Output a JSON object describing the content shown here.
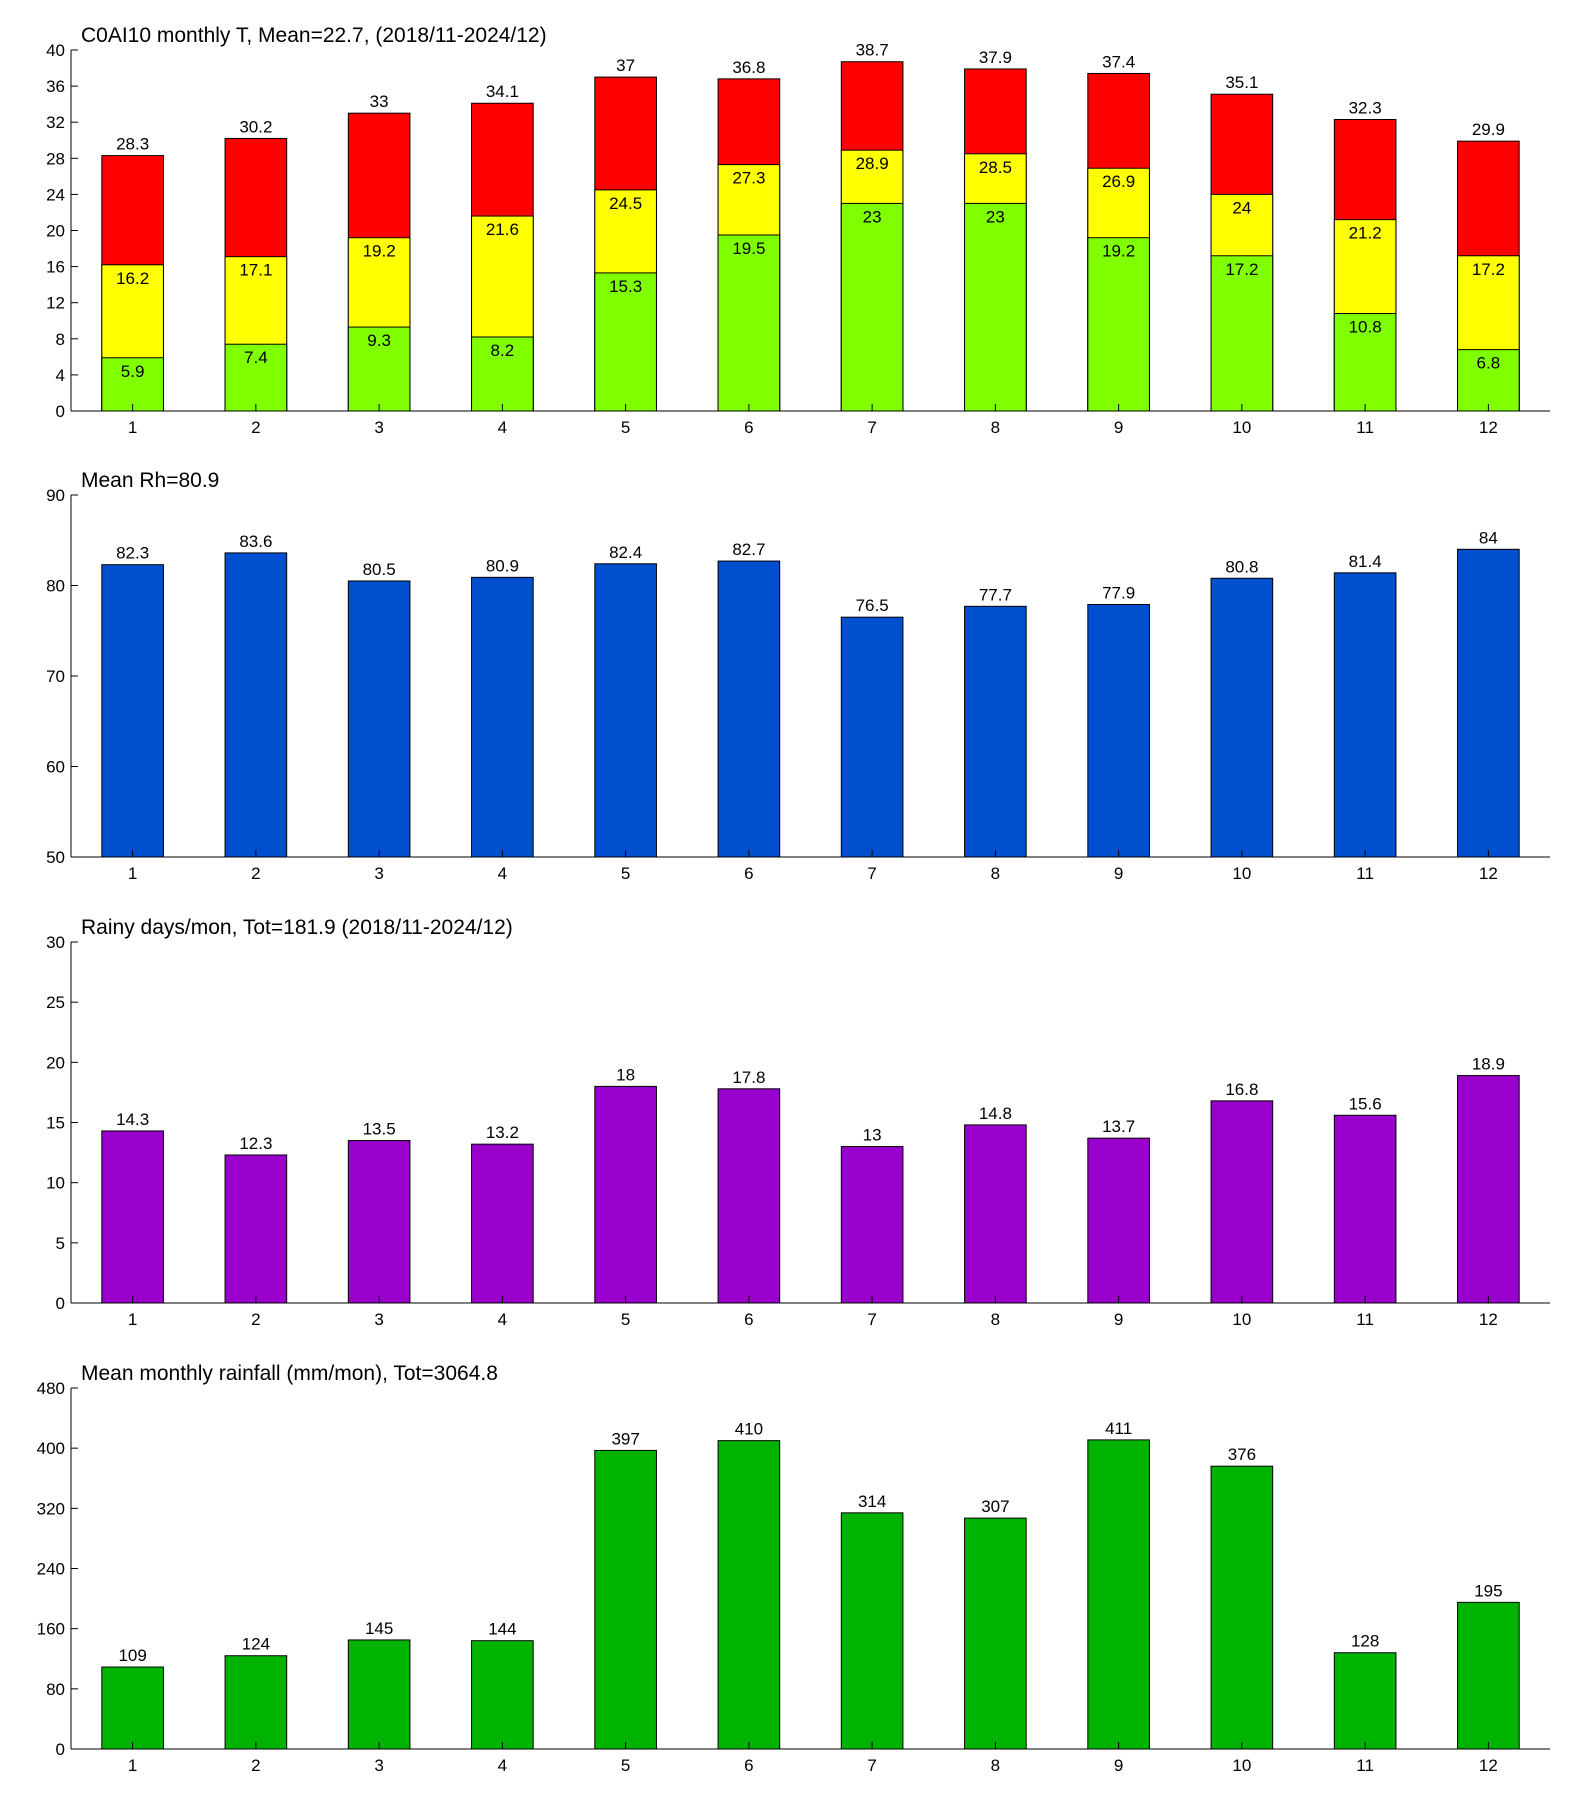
{
  "chart_data": [
    {
      "type": "bar",
      "title": "C0AI10 monthly T, Mean=22.7, (2018/11-2024/12)",
      "categories": [
        "1",
        "2",
        "3",
        "4",
        "5",
        "6",
        "7",
        "8",
        "9",
        "10",
        "11",
        "12"
      ],
      "series": [
        {
          "color": "#80ff00",
          "values": [
            5.9,
            7.4,
            9.3,
            8.2,
            15.3,
            19.5,
            23,
            23,
            19.2,
            17.2,
            10.8,
            6.8
          ]
        },
        {
          "color": "#ffff00",
          "values": [
            16.2,
            17.1,
            19.2,
            21.6,
            24.5,
            27.3,
            28.9,
            28.5,
            26.9,
            24,
            21.2,
            17.2
          ]
        },
        {
          "color": "#ff0000",
          "values": [
            28.3,
            30.2,
            33,
            34.1,
            37,
            36.8,
            38.7,
            37.9,
            37.4,
            35.1,
            32.3,
            29.9
          ]
        }
      ],
      "ylim": [
        0,
        40
      ],
      "yticks": [
        0,
        4,
        8,
        12,
        16,
        20,
        24,
        28,
        32,
        36,
        40
      ]
    },
    {
      "type": "bar",
      "title": "Mean Rh=80.9",
      "categories": [
        "1",
        "2",
        "3",
        "4",
        "5",
        "6",
        "7",
        "8",
        "9",
        "10",
        "11",
        "12"
      ],
      "values": [
        82.3,
        83.6,
        80.5,
        80.9,
        82.4,
        82.7,
        76.5,
        77.7,
        77.9,
        80.8,
        81.4,
        84
      ],
      "color": "#004fcf",
      "ylim": [
        50,
        90
      ],
      "yticks": [
        50,
        60,
        70,
        80,
        90
      ]
    },
    {
      "type": "bar",
      "title": "Rainy days/mon, Tot=181.9 (2018/11-2024/12)",
      "categories": [
        "1",
        "2",
        "3",
        "4",
        "5",
        "6",
        "7",
        "8",
        "9",
        "10",
        "11",
        "12"
      ],
      "values": [
        14.3,
        12.3,
        13.5,
        13.2,
        18,
        17.8,
        13,
        14.8,
        13.7,
        16.8,
        15.6,
        18.9
      ],
      "color": "#9900cc",
      "ylim": [
        0,
        30
      ],
      "yticks": [
        0,
        5,
        10,
        15,
        20,
        25,
        30
      ]
    },
    {
      "type": "bar",
      "title": "Mean monthly rainfall (mm/mon), Tot=3064.8",
      "categories": [
        "1",
        "2",
        "3",
        "4",
        "5",
        "6",
        "7",
        "8",
        "9",
        "10",
        "11",
        "12"
      ],
      "values": [
        109,
        124,
        145,
        144,
        397,
        410,
        314,
        307,
        411,
        376,
        128,
        195
      ],
      "color": "#00b300",
      "ylim": [
        0,
        480
      ],
      "yticks": [
        0,
        80,
        160,
        240,
        320,
        400,
        480
      ]
    }
  ]
}
